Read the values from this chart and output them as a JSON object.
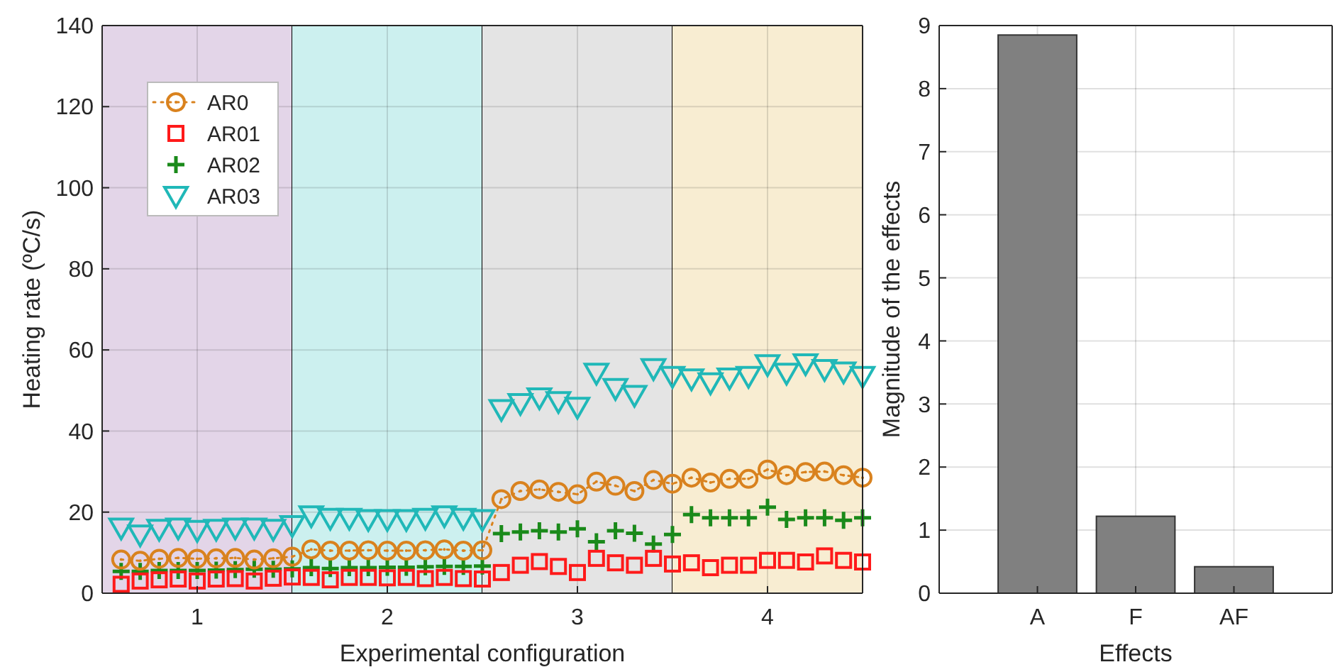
{
  "chart_data": [
    {
      "type": "scatter",
      "xlabel": "Experimental configuration",
      "ylabel": "Heating rate (ºC/s)",
      "x": [
        0.6,
        0.7,
        0.8,
        0.9,
        1.0,
        1.1,
        1.2,
        1.3,
        1.4,
        1.5,
        1.6,
        1.7,
        1.8,
        1.9,
        2.0,
        2.1,
        2.2,
        2.3,
        2.4,
        2.5,
        2.6,
        2.7,
        2.8,
        2.9,
        3.0,
        3.1,
        3.2,
        3.3,
        3.4,
        3.5,
        3.6,
        3.7,
        3.8,
        3.9,
        4.0,
        4.1,
        4.2,
        4.3,
        4.4,
        4.5
      ],
      "series": [
        {
          "name": "AR0",
          "type": "line",
          "marker": "circle",
          "line_style": "dotted",
          "color": "#d9821e",
          "values": [
            8.3,
            8.0,
            8.5,
            8.7,
            8.5,
            8.6,
            8.7,
            8.3,
            8.6,
            9.0,
            10.8,
            10.5,
            10.5,
            10.6,
            10.5,
            10.5,
            10.6,
            10.8,
            10.5,
            10.6,
            23.2,
            25.2,
            25.6,
            25.0,
            24.4,
            27.5,
            26.5,
            25.2,
            27.9,
            27.0,
            28.5,
            27.3,
            28.2,
            28.2,
            30.5,
            29.1,
            29.9,
            30.0,
            29.1,
            28.5
          ]
        },
        {
          "name": "AR01",
          "marker": "square",
          "color": "#ff1a1a",
          "values": [
            2.2,
            3.0,
            3.3,
            3.5,
            3.0,
            3.5,
            3.6,
            3.0,
            3.7,
            4.0,
            3.9,
            3.3,
            3.9,
            3.9,
            3.8,
            3.9,
            3.6,
            3.9,
            3.6,
            3.5,
            5.1,
            6.9,
            7.8,
            6.6,
            5.1,
            8.6,
            7.5,
            6.9,
            8.6,
            7.2,
            7.5,
            6.3,
            6.9,
            6.9,
            8.1,
            8.1,
            7.7,
            9.2,
            8.1,
            7.7
          ]
        },
        {
          "name": "AR02",
          "marker": "cross",
          "color": "#1a8a1a",
          "values": [
            5.4,
            5.4,
            5.6,
            5.6,
            5.6,
            5.7,
            5.8,
            5.9,
            5.9,
            6.0,
            6.3,
            6.1,
            6.3,
            6.3,
            6.4,
            6.4,
            6.5,
            6.6,
            6.6,
            6.7,
            14.7,
            15.1,
            15.4,
            15.1,
            15.9,
            12.7,
            15.4,
            14.8,
            12.1,
            14.5,
            19.4,
            18.6,
            18.6,
            18.6,
            21.2,
            18.2,
            18.6,
            18.6,
            18.0,
            18.6
          ]
        },
        {
          "name": "AR03",
          "marker": "triangle",
          "color": "#20b8b8",
          "values": [
            16.2,
            14.5,
            15.9,
            16.2,
            15.6,
            15.9,
            16.2,
            16.2,
            15.9,
            16.8,
            19.2,
            18.6,
            18.6,
            18.3,
            18.3,
            18.3,
            18.6,
            19.2,
            18.6,
            18.3,
            45.4,
            46.9,
            48.3,
            47.4,
            46.0,
            54.4,
            50.6,
            48.9,
            55.5,
            53.6,
            53.0,
            52.0,
            53.2,
            53.6,
            56.5,
            54.4,
            56.7,
            55.3,
            54.7,
            53.6
          ]
        }
      ],
      "xlim": [
        0.5,
        4.5
      ],
      "xticks": [
        1,
        2,
        3,
        4
      ],
      "ylim": [
        0,
        140
      ],
      "yticks": [
        0,
        20,
        40,
        60,
        80,
        100,
        120,
        140
      ],
      "grid": true,
      "legend": "top left",
      "bands": [
        {
          "axis": "x",
          "from": 0.5,
          "to": 1.5,
          "color": "#e3d5e8"
        },
        {
          "axis": "x",
          "from": 1.5,
          "to": 2.5,
          "color": "#ccf0ef"
        },
        {
          "axis": "x",
          "from": 2.5,
          "to": 3.5,
          "color": "#e4e4e4"
        },
        {
          "axis": "x",
          "from": 3.5,
          "to": 4.5,
          "color": "#f8edd2"
        }
      ]
    },
    {
      "type": "bar",
      "xlabel": "Effects",
      "ylabel": "Magnitude of the effects",
      "categories": [
        "A",
        "F",
        "AF"
      ],
      "values": [
        8.85,
        1.22,
        0.42
      ],
      "color": "#808080",
      "ylim": [
        0,
        9
      ],
      "yticks": [
        0,
        1,
        2,
        3,
        4,
        5,
        6,
        7,
        8,
        9
      ],
      "grid": true
    }
  ]
}
